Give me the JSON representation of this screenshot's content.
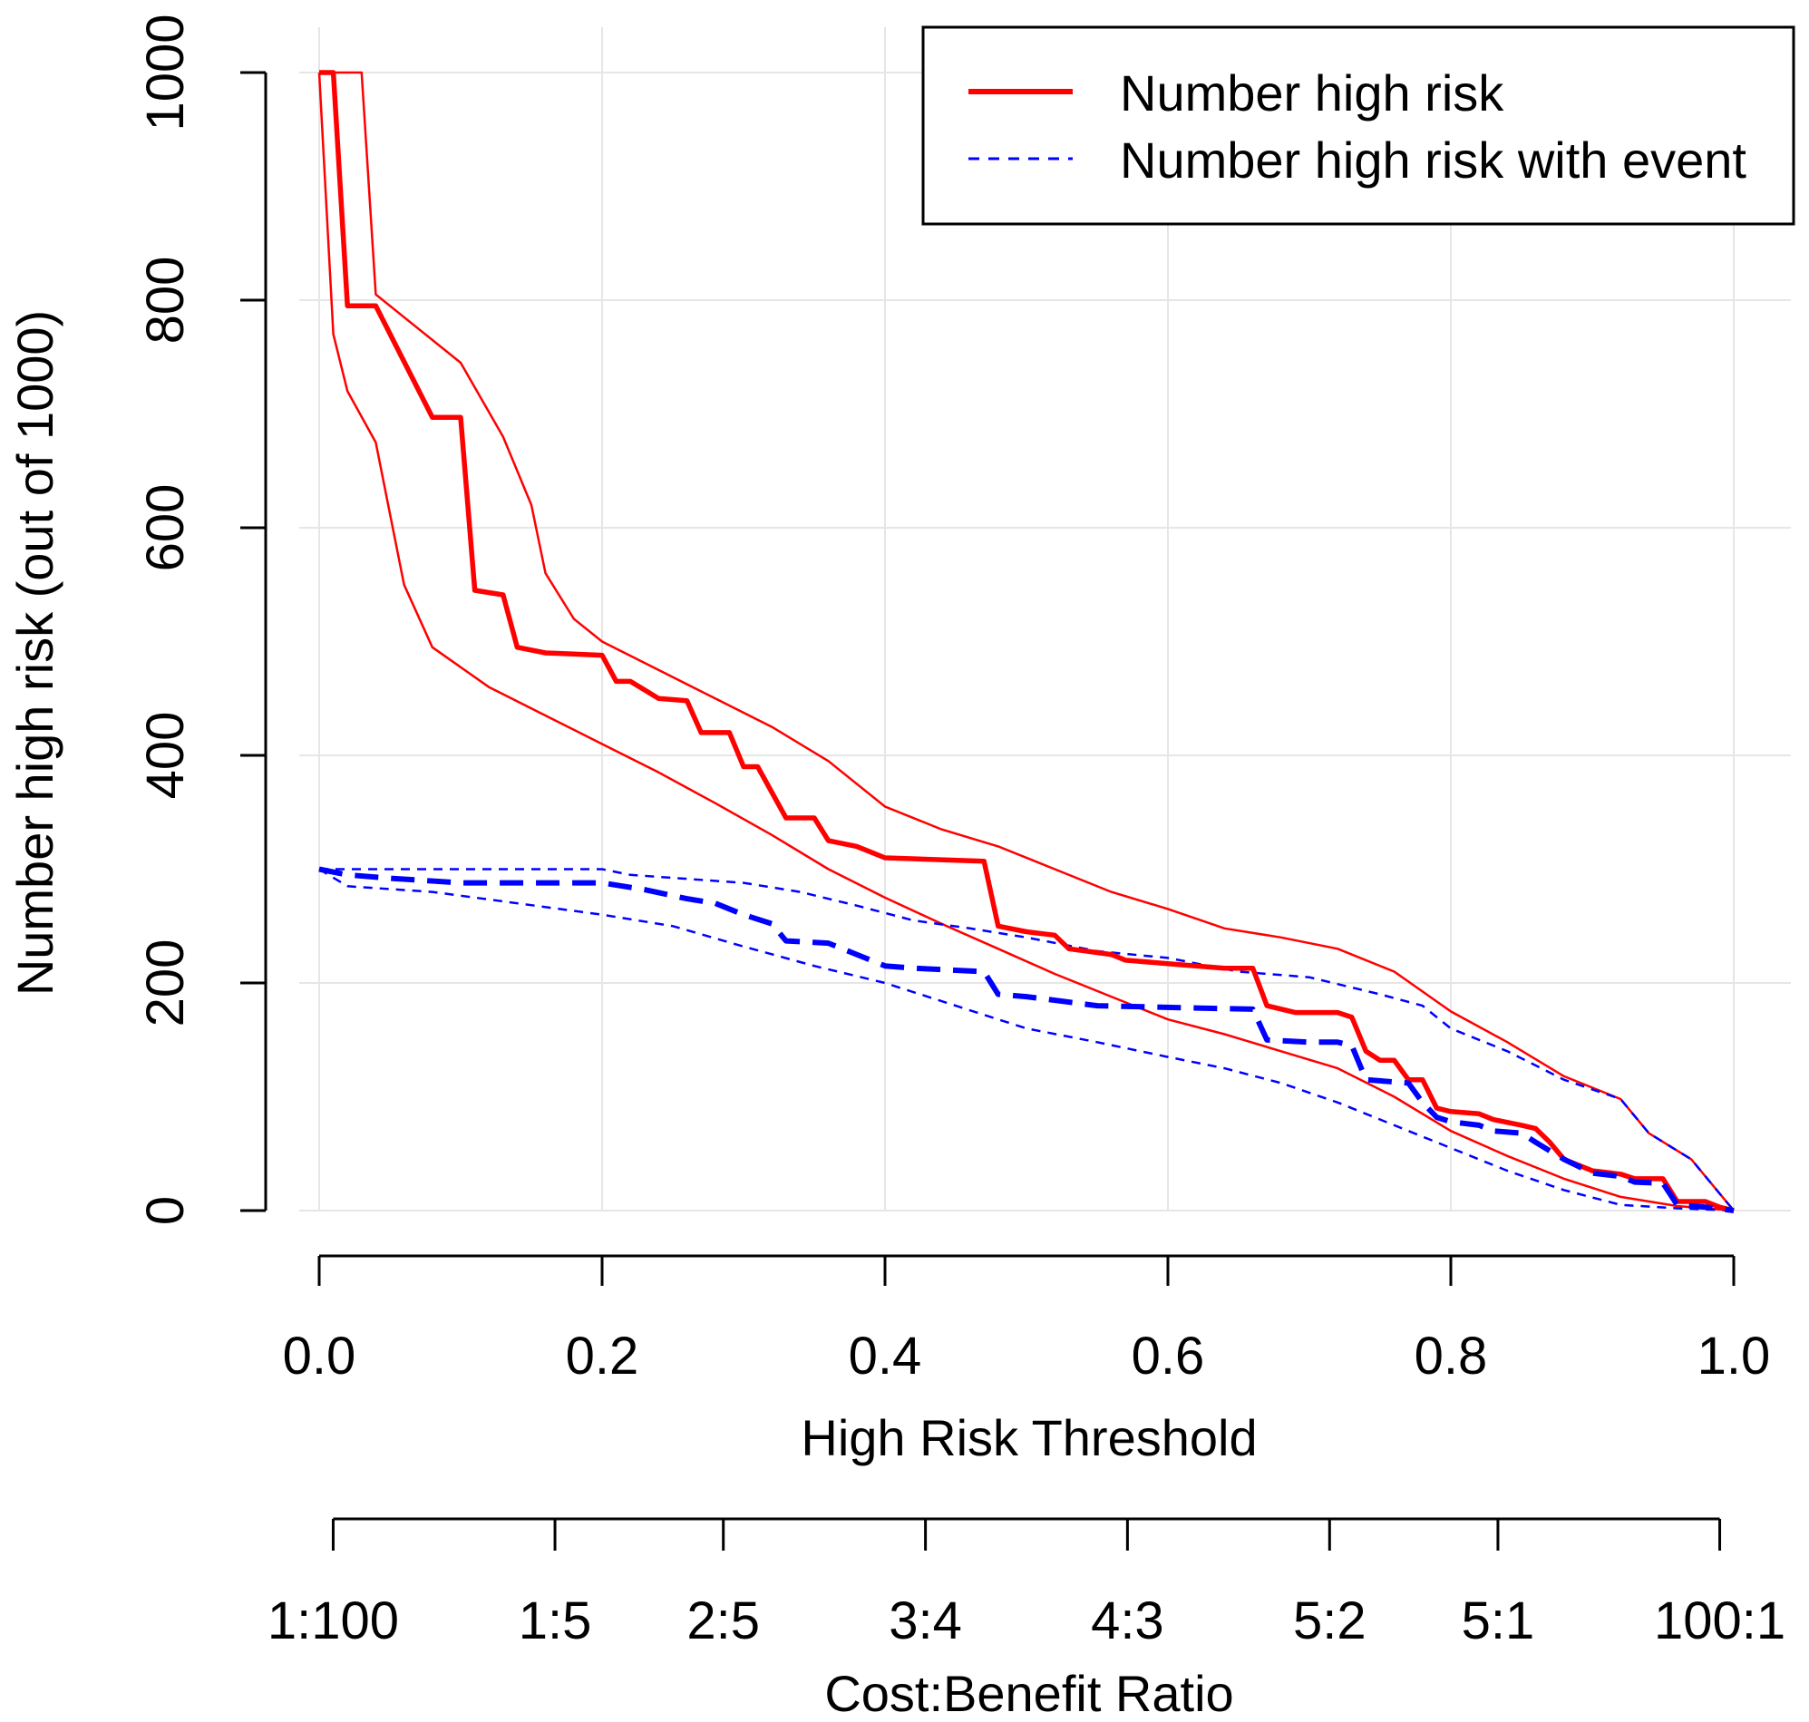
{
  "chart_data": {
    "type": "line",
    "title": "",
    "xlabel": "High Risk Threshold",
    "ylabel": "Number high risk (out of 1000)",
    "xlim": [
      0,
      1
    ],
    "ylim": [
      0,
      1000
    ],
    "grid": true,
    "legend_position": "top-right",
    "x_ticks": [
      "0.0",
      "0.2",
      "0.4",
      "0.6",
      "0.8",
      "1.0"
    ],
    "x_tick_values": [
      0,
      0.2,
      0.4,
      0.6,
      0.8,
      1.0
    ],
    "y_ticks": [
      "0",
      "200",
      "400",
      "600",
      "800",
      "1000"
    ],
    "y_tick_values": [
      0,
      200,
      400,
      600,
      800,
      1000
    ],
    "secondary_axis": {
      "label": "Cost:Benefit Ratio",
      "ticks": [
        "1:100",
        "1:5",
        "2:5",
        "3:4",
        "4:3",
        "5:2",
        "5:1",
        "100:1"
      ],
      "tick_thresholds": [
        0.0099,
        0.1667,
        0.2857,
        0.4286,
        0.5714,
        0.7143,
        0.8333,
        0.9901
      ]
    },
    "series": [
      {
        "name": "Number high risk",
        "style": "solid-thick",
        "color": "#ff0000",
        "in_legend": true,
        "points": [
          [
            0,
            1000
          ],
          [
            0.01,
            1000
          ],
          [
            0.01,
            1000
          ],
          [
            0.02,
            795
          ],
          [
            0.04,
            795
          ],
          [
            0.08,
            697
          ],
          [
            0.1,
            697
          ],
          [
            0.11,
            545
          ],
          [
            0.13,
            541
          ],
          [
            0.14,
            495
          ],
          [
            0.16,
            490
          ],
          [
            0.2,
            488
          ],
          [
            0.21,
            465
          ],
          [
            0.22,
            465
          ],
          [
            0.24,
            450
          ],
          [
            0.26,
            448
          ],
          [
            0.27,
            420
          ],
          [
            0.29,
            420
          ],
          [
            0.3,
            390
          ],
          [
            0.31,
            390
          ],
          [
            0.33,
            345
          ],
          [
            0.35,
            345
          ],
          [
            0.36,
            325
          ],
          [
            0.38,
            320
          ],
          [
            0.39,
            315
          ],
          [
            0.4,
            310
          ],
          [
            0.47,
            307
          ],
          [
            0.48,
            250
          ],
          [
            0.5,
            245
          ],
          [
            0.52,
            242
          ],
          [
            0.53,
            230
          ],
          [
            0.56,
            225
          ],
          [
            0.57,
            220
          ],
          [
            0.6,
            217
          ],
          [
            0.64,
            213
          ],
          [
            0.66,
            213
          ],
          [
            0.67,
            180
          ],
          [
            0.69,
            174
          ],
          [
            0.72,
            174
          ],
          [
            0.73,
            170
          ],
          [
            0.74,
            140
          ],
          [
            0.75,
            132
          ],
          [
            0.76,
            132
          ],
          [
            0.77,
            115
          ],
          [
            0.78,
            115
          ],
          [
            0.79,
            90
          ],
          [
            0.8,
            87
          ],
          [
            0.82,
            85
          ],
          [
            0.83,
            80
          ],
          [
            0.85,
            75
          ],
          [
            0.86,
            72
          ],
          [
            0.87,
            60
          ],
          [
            0.88,
            45
          ],
          [
            0.9,
            35
          ],
          [
            0.92,
            32
          ],
          [
            0.93,
            28
          ],
          [
            0.95,
            28
          ],
          [
            0.96,
            8
          ],
          [
            0.98,
            8
          ],
          [
            0.99,
            3
          ],
          [
            1.0,
            0
          ]
        ]
      },
      {
        "name": "Number high risk upper bound",
        "style": "solid-thin",
        "color": "#ff0000",
        "in_legend": false,
        "points": [
          [
            0,
            1000
          ],
          [
            0.03,
            1000
          ],
          [
            0.04,
            805
          ],
          [
            0.06,
            785
          ],
          [
            0.1,
            745
          ],
          [
            0.13,
            680
          ],
          [
            0.15,
            620
          ],
          [
            0.16,
            560
          ],
          [
            0.18,
            520
          ],
          [
            0.2,
            500
          ],
          [
            0.24,
            475
          ],
          [
            0.28,
            450
          ],
          [
            0.32,
            425
          ],
          [
            0.36,
            395
          ],
          [
            0.4,
            355
          ],
          [
            0.44,
            335
          ],
          [
            0.48,
            320
          ],
          [
            0.52,
            300
          ],
          [
            0.56,
            280
          ],
          [
            0.6,
            265
          ],
          [
            0.64,
            248
          ],
          [
            0.68,
            240
          ],
          [
            0.72,
            230
          ],
          [
            0.76,
            210
          ],
          [
            0.8,
            175
          ],
          [
            0.84,
            148
          ],
          [
            0.88,
            118
          ],
          [
            0.92,
            98
          ],
          [
            0.94,
            68
          ],
          [
            0.97,
            45
          ],
          [
            1.0,
            0
          ]
        ]
      },
      {
        "name": "Number high risk lower bound",
        "style": "solid-thin",
        "color": "#ff0000",
        "in_legend": false,
        "points": [
          [
            0,
            1000
          ],
          [
            0.01,
            770
          ],
          [
            0.02,
            720
          ],
          [
            0.04,
            675
          ],
          [
            0.06,
            550
          ],
          [
            0.08,
            495
          ],
          [
            0.12,
            460
          ],
          [
            0.16,
            435
          ],
          [
            0.2,
            410
          ],
          [
            0.24,
            385
          ],
          [
            0.28,
            358
          ],
          [
            0.32,
            330
          ],
          [
            0.36,
            300
          ],
          [
            0.4,
            275
          ],
          [
            0.44,
            252
          ],
          [
            0.48,
            230
          ],
          [
            0.52,
            208
          ],
          [
            0.56,
            188
          ],
          [
            0.6,
            168
          ],
          [
            0.64,
            155
          ],
          [
            0.68,
            140
          ],
          [
            0.72,
            125
          ],
          [
            0.76,
            100
          ],
          [
            0.8,
            70
          ],
          [
            0.84,
            48
          ],
          [
            0.88,
            28
          ],
          [
            0.92,
            12
          ],
          [
            0.96,
            4
          ],
          [
            1.0,
            0
          ]
        ]
      },
      {
        "name": "Number high risk with event",
        "style": "dashed-thick",
        "color": "#0000ff",
        "in_legend": true,
        "points": [
          [
            0,
            300
          ],
          [
            0.02,
            295
          ],
          [
            0.05,
            292
          ],
          [
            0.1,
            288
          ],
          [
            0.2,
            288
          ],
          [
            0.23,
            282
          ],
          [
            0.26,
            274
          ],
          [
            0.28,
            270
          ],
          [
            0.3,
            260
          ],
          [
            0.32,
            252
          ],
          [
            0.33,
            237
          ],
          [
            0.36,
            235
          ],
          [
            0.38,
            225
          ],
          [
            0.4,
            215
          ],
          [
            0.42,
            213
          ],
          [
            0.47,
            210
          ],
          [
            0.48,
            190
          ],
          [
            0.5,
            188
          ],
          [
            0.55,
            180
          ],
          [
            0.62,
            178
          ],
          [
            0.66,
            177
          ],
          [
            0.67,
            150
          ],
          [
            0.7,
            148
          ],
          [
            0.72,
            148
          ],
          [
            0.73,
            145
          ],
          [
            0.74,
            115
          ],
          [
            0.77,
            112
          ],
          [
            0.78,
            95
          ],
          [
            0.79,
            82
          ],
          [
            0.8,
            78
          ],
          [
            0.82,
            75
          ],
          [
            0.83,
            70
          ],
          [
            0.85,
            68
          ],
          [
            0.86,
            60
          ],
          [
            0.88,
            45
          ],
          [
            0.9,
            33
          ],
          [
            0.92,
            30
          ],
          [
            0.93,
            25
          ],
          [
            0.95,
            24
          ],
          [
            0.96,
            5
          ],
          [
            0.98,
            3
          ],
          [
            1.0,
            0
          ]
        ]
      },
      {
        "name": "Number high risk with event upper bound",
        "style": "dashed-thin",
        "color": "#0000ff",
        "in_legend": false,
        "points": [
          [
            0,
            300
          ],
          [
            0.05,
            300
          ],
          [
            0.1,
            300
          ],
          [
            0.2,
            300
          ],
          [
            0.22,
            295
          ],
          [
            0.3,
            288
          ],
          [
            0.34,
            280
          ],
          [
            0.38,
            268
          ],
          [
            0.42,
            255
          ],
          [
            0.46,
            248
          ],
          [
            0.5,
            240
          ],
          [
            0.55,
            228
          ],
          [
            0.6,
            222
          ],
          [
            0.65,
            210
          ],
          [
            0.7,
            205
          ],
          [
            0.75,
            190
          ],
          [
            0.78,
            180
          ],
          [
            0.8,
            160
          ],
          [
            0.84,
            140
          ],
          [
            0.88,
            115
          ],
          [
            0.92,
            98
          ],
          [
            0.94,
            68
          ],
          [
            0.97,
            45
          ],
          [
            1.0,
            0
          ]
        ]
      },
      {
        "name": "Number high risk with event lower bound",
        "style": "dashed-thin",
        "color": "#0000ff",
        "in_legend": false,
        "points": [
          [
            0,
            300
          ],
          [
            0.02,
            285
          ],
          [
            0.08,
            280
          ],
          [
            0.14,
            270
          ],
          [
            0.2,
            260
          ],
          [
            0.25,
            250
          ],
          [
            0.3,
            232
          ],
          [
            0.35,
            215
          ],
          [
            0.4,
            200
          ],
          [
            0.45,
            180
          ],
          [
            0.5,
            160
          ],
          [
            0.55,
            148
          ],
          [
            0.6,
            135
          ],
          [
            0.64,
            125
          ],
          [
            0.68,
            112
          ],
          [
            0.72,
            95
          ],
          [
            0.76,
            75
          ],
          [
            0.8,
            55
          ],
          [
            0.84,
            35
          ],
          [
            0.88,
            18
          ],
          [
            0.92,
            5
          ],
          [
            0.96,
            2
          ],
          [
            1.0,
            0
          ]
        ]
      }
    ],
    "legend": [
      {
        "label": "Number high risk",
        "style": "solid",
        "color": "#ff0000"
      },
      {
        "label": "Number high risk with event",
        "style": "dashed",
        "color": "#0000ff"
      }
    ]
  }
}
